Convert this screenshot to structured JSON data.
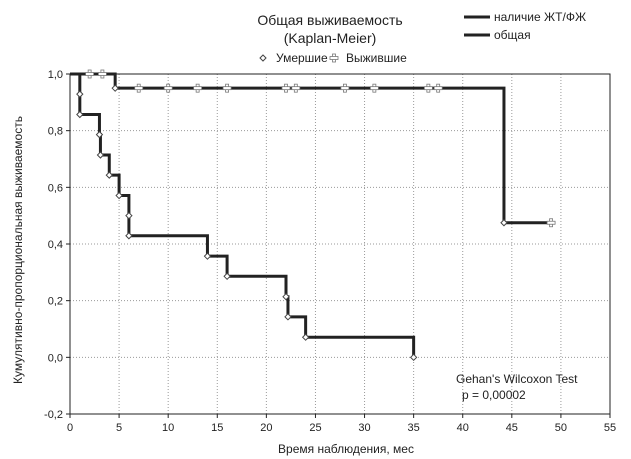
{
  "chart_data": {
    "type": "line",
    "title": "Общая выживаемость",
    "subtitle": "(Kaplan-Meier)",
    "xlabel": "Время наблюдения, мес",
    "ylabel": "Кумулятивно-пропорциональная выживаемость",
    "xlim": [
      0,
      55
    ],
    "ylim": [
      -0.2,
      1.0
    ],
    "xticks": [
      0,
      5,
      10,
      15,
      20,
      25,
      30,
      35,
      40,
      45,
      50,
      55
    ],
    "yticks": [
      -0.2,
      0.0,
      0.2,
      0.4,
      0.6,
      0.8,
      1.0
    ],
    "xtick_labels": [
      "0",
      "5",
      "10",
      "15",
      "20",
      "25",
      "30",
      "35",
      "40",
      "45",
      "50",
      "55"
    ],
    "ytick_labels": [
      "-0,2",
      "0,0",
      "0,2",
      "0,4",
      "0,6",
      "0,8",
      "1,0"
    ],
    "grid": true,
    "marker_legend": [
      {
        "label": "Умершие",
        "marker": "open-diamond"
      },
      {
        "label": "Выжившие",
        "marker": "open-cross"
      }
    ],
    "series": [
      {
        "name": "наличие ЖТ/ФЖ",
        "color": "#222222",
        "steps": [
          [
            0,
            1.0
          ],
          [
            4.6,
            0.95
          ],
          [
            44.2,
            0.475
          ],
          [
            49,
            0.475
          ]
        ],
        "deaths": [
          [
            4.6,
            0.95
          ],
          [
            44.2,
            0.475
          ]
        ],
        "censored": [
          [
            2.0,
            1.0
          ],
          [
            3.3,
            1.0
          ],
          [
            7,
            0.95
          ],
          [
            10,
            0.95
          ],
          [
            13,
            0.95
          ],
          [
            16,
            0.95
          ],
          [
            22,
            0.95
          ],
          [
            23,
            0.95
          ],
          [
            28,
            0.95
          ],
          [
            31,
            0.95
          ],
          [
            36.5,
            0.95
          ],
          [
            37.5,
            0.95
          ],
          [
            49,
            0.475
          ]
        ]
      },
      {
        "name": "общая",
        "color": "#222222",
        "steps": [
          [
            0,
            1.0
          ],
          [
            1.0,
            0.857
          ],
          [
            3.0,
            0.786
          ],
          [
            3.1,
            0.714
          ],
          [
            4.0,
            0.643
          ],
          [
            5.0,
            0.571
          ],
          [
            6.0,
            0.429
          ],
          [
            14.0,
            0.357
          ],
          [
            16.0,
            0.286
          ],
          [
            22.0,
            0.214
          ],
          [
            22.2,
            0.143
          ],
          [
            24.0,
            0.071
          ],
          [
            35.0,
            0.0
          ]
        ],
        "deaths": [
          [
            1.0,
            0.929
          ],
          [
            1.0,
            0.857
          ],
          [
            3.0,
            0.786
          ],
          [
            3.1,
            0.714
          ],
          [
            4.0,
            0.643
          ],
          [
            5.0,
            0.571
          ],
          [
            6.0,
            0.5
          ],
          [
            6.0,
            0.429
          ],
          [
            14.0,
            0.357
          ],
          [
            16.0,
            0.286
          ],
          [
            22.0,
            0.214
          ],
          [
            22.2,
            0.143
          ],
          [
            24.0,
            0.071
          ],
          [
            35.0,
            0.0
          ]
        ],
        "censored": []
      }
    ],
    "annotation": [
      "Gehan's Wilcoxon Test",
      "p = 0,00002"
    ]
  }
}
